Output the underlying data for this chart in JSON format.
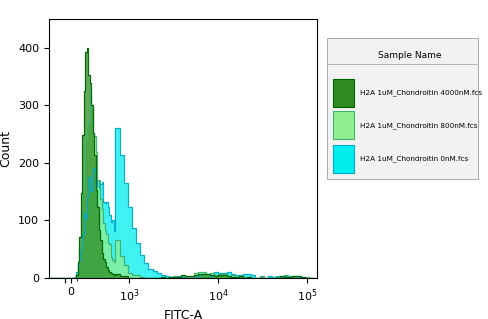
{
  "title": "",
  "xlabel": "FITC-A",
  "ylabel": "Count",
  "legend_title": "Sample Name",
  "legend_entries": [
    "H2A 1uM_Chondroitin 4000nM.fcs",
    "H2A 1uM_Chondroitin 800nM.fcs",
    "H2A 1uM_Chondroitin 0nM.fcs"
  ],
  "fill_colors": [
    "#2E8B22",
    "#90EE90",
    "#00EEEE"
  ],
  "edge_colors": [
    "#006400",
    "#3CB371",
    "#00AACC"
  ],
  "ylim": [
    0,
    450
  ],
  "yticks": [
    0,
    100,
    200,
    300,
    400
  ],
  "background_color": "#ffffff",
  "legend_bg": "#f2f2f2"
}
